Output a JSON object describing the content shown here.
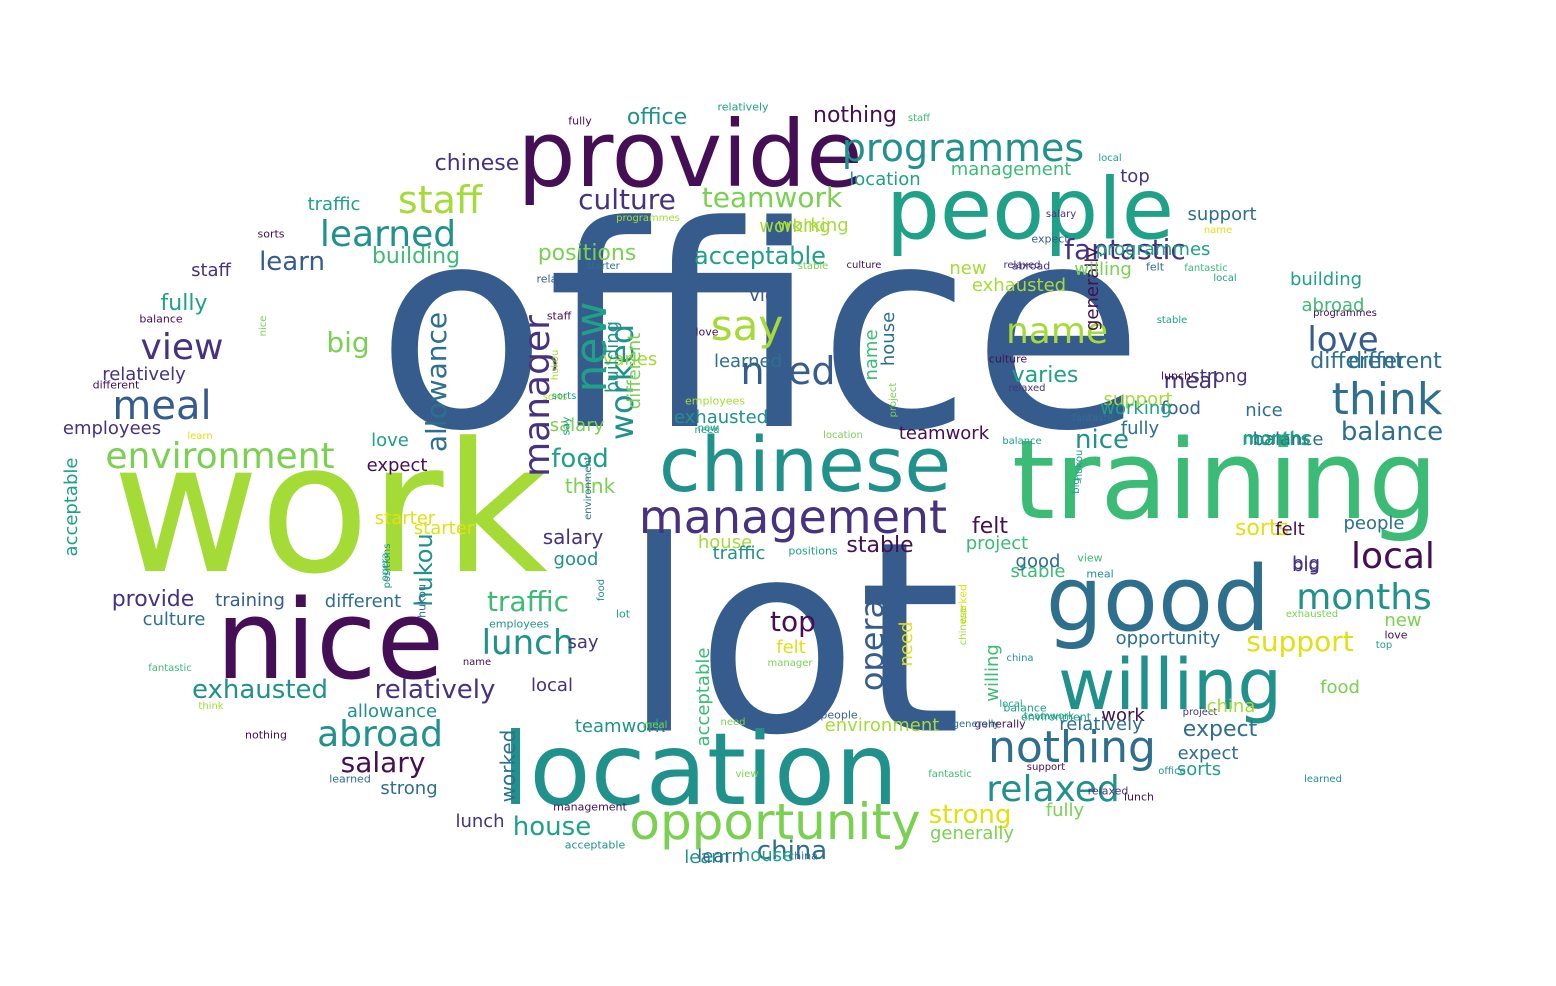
{
  "palette": {
    "deep_purple": "#440f54",
    "indigo": "#46327e",
    "blue": "#365c8d",
    "steel": "#2e6f8e",
    "teal": "#21918c",
    "green_teal": "#1fa187",
    "green": "#3bbb75",
    "lime": "#7ad151",
    "yellow_green": "#a5db36",
    "yellow": "#e0e014"
  },
  "words": [
    {
      "text": "office"
    },
    {
      "text": "lot"
    },
    {
      "text": "work"
    },
    {
      "text": "training"
    },
    {
      "text": "nice"
    },
    {
      "text": "location"
    },
    {
      "text": "provide"
    },
    {
      "text": "people"
    },
    {
      "text": "good"
    },
    {
      "text": "chinese"
    },
    {
      "text": "willing"
    },
    {
      "text": "opportunity"
    },
    {
      "text": "management"
    },
    {
      "text": "nothing"
    },
    {
      "text": "programmes"
    },
    {
      "text": "staff"
    },
    {
      "text": "learned"
    },
    {
      "text": "culture"
    },
    {
      "text": "teamwork"
    },
    {
      "text": "environment"
    },
    {
      "text": "meal"
    },
    {
      "text": "view"
    },
    {
      "text": "say"
    },
    {
      "text": "need"
    },
    {
      "text": "think"
    },
    {
      "text": "love"
    },
    {
      "text": "balance"
    },
    {
      "text": "local"
    },
    {
      "text": "months"
    },
    {
      "text": "support"
    },
    {
      "text": "relaxed"
    },
    {
      "text": "abroad"
    },
    {
      "text": "salary"
    },
    {
      "text": "exhausted"
    },
    {
      "text": "relatively"
    },
    {
      "text": "lunch"
    },
    {
      "text": "traffic"
    },
    {
      "text": "house"
    },
    {
      "text": "china"
    },
    {
      "text": "strong"
    },
    {
      "text": "name"
    },
    {
      "text": "fantastic"
    },
    {
      "text": "acceptable"
    },
    {
      "text": "positions"
    },
    {
      "text": "building"
    },
    {
      "text": "big"
    },
    {
      "text": "learn"
    },
    {
      "text": "food"
    },
    {
      "text": "top"
    },
    {
      "text": "stable"
    },
    {
      "text": "felt"
    },
    {
      "text": "generally"
    },
    {
      "text": "fully"
    },
    {
      "text": "expect"
    },
    {
      "text": "varies"
    },
    {
      "text": "sorts"
    },
    {
      "text": "different"
    },
    {
      "text": "employees"
    },
    {
      "text": "starter"
    },
    {
      "text": "project"
    },
    {
      "text": "opera"
    },
    {
      "text": "manager"
    },
    {
      "text": "new"
    },
    {
      "text": "worked"
    },
    {
      "text": "allowance"
    },
    {
      "text": "hukou"
    },
    {
      "text": "working"
    },
    {
      "text": "relatively"
    },
    {
      "text": "employees"
    },
    {
      "text": "acceptable"
    },
    {
      "text": "different"
    },
    {
      "text": "balance"
    },
    {
      "text": "staff"
    },
    {
      "text": "sorts"
    },
    {
      "text": "traffic"
    },
    {
      "text": "chinese"
    },
    {
      "text": "office"
    },
    {
      "text": "nothing"
    },
    {
      "text": "fully"
    },
    {
      "text": "relatively"
    },
    {
      "text": "worked"
    },
    {
      "text": "staff"
    },
    {
      "text": "location"
    },
    {
      "text": "management"
    },
    {
      "text": "top"
    },
    {
      "text": "local"
    },
    {
      "text": "support"
    },
    {
      "text": "building"
    },
    {
      "text": "abroad"
    },
    {
      "text": "programmes"
    },
    {
      "text": "stable"
    },
    {
      "text": "culture"
    },
    {
      "text": "relaxed"
    },
    {
      "text": "different"
    },
    {
      "text": "meal"
    },
    {
      "text": "nice"
    },
    {
      "text": "months"
    },
    {
      "text": "people"
    },
    {
      "text": "big"
    },
    {
      "text": "new"
    },
    {
      "text": "love"
    },
    {
      "text": "top"
    },
    {
      "text": "food"
    },
    {
      "text": "project"
    },
    {
      "text": "lunch"
    },
    {
      "text": "support"
    },
    {
      "text": "china"
    },
    {
      "text": "teamwork"
    },
    {
      "text": "generally"
    },
    {
      "text": "name"
    },
    {
      "text": "learn"
    },
    {
      "text": "fantastic"
    },
    {
      "text": "exhausted"
    },
    {
      "text": "expect"
    },
    {
      "text": "learned"
    },
    {
      "text": "sorts"
    },
    {
      "text": "fully"
    },
    {
      "text": "work"
    },
    {
      "text": "nice"
    },
    {
      "text": "balance"
    },
    {
      "text": "months"
    },
    {
      "text": "felt"
    },
    {
      "text": "stable"
    },
    {
      "text": "good"
    },
    {
      "text": "big"
    },
    {
      "text": "house"
    },
    {
      "text": "traffic"
    },
    {
      "text": "positions"
    },
    {
      "text": "working"
    },
    {
      "text": "opportunity"
    },
    {
      "text": "willing"
    },
    {
      "text": "teamwork"
    },
    {
      "text": "meal"
    },
    {
      "text": "environment"
    },
    {
      "text": "generally"
    },
    {
      "text": "view"
    },
    {
      "text": "local"
    },
    {
      "text": "allowance"
    },
    {
      "text": "lot"
    },
    {
      "text": "salary"
    },
    {
      "text": "say"
    },
    {
      "text": "provide"
    },
    {
      "text": "training"
    },
    {
      "text": "different"
    },
    {
      "text": "culture"
    },
    {
      "text": "strong"
    },
    {
      "text": "nothing"
    },
    {
      "text": "learned"
    },
    {
      "text": "lunch"
    },
    {
      "text": "house"
    },
    {
      "text": "acceptable"
    },
    {
      "text": "learn"
    },
    {
      "text": "china"
    },
    {
      "text": "management"
    },
    {
      "text": "employees"
    },
    {
      "text": "opera"
    },
    {
      "text": "hukou"
    },
    {
      "text": "starter"
    },
    {
      "text": "think"
    },
    {
      "text": "salary"
    },
    {
      "text": "good"
    },
    {
      "text": "love"
    },
    {
      "text": "expect"
    },
    {
      "text": "felt"
    },
    {
      "text": "manager"
    },
    {
      "text": "exhausted"
    },
    {
      "text": "relaxed"
    },
    {
      "text": "local"
    },
    {
      "text": "say"
    },
    {
      "text": "big"
    },
    {
      "text": "china"
    },
    {
      "text": "relatively"
    },
    {
      "text": "office"
    },
    {
      "text": "balance"
    },
    {
      "text": "environment"
    },
    {
      "text": "generally"
    },
    {
      "text": "teamwork"
    },
    {
      "text": "project"
    },
    {
      "text": "house"
    },
    {
      "text": "support"
    },
    {
      "text": "lunch"
    },
    {
      "text": "food"
    },
    {
      "text": "fully"
    },
    {
      "text": "working"
    },
    {
      "text": "employees"
    },
    {
      "text": "view"
    },
    {
      "text": "meal"
    },
    {
      "text": "nothing"
    },
    {
      "text": "learned"
    },
    {
      "text": "strong"
    },
    {
      "text": "varies"
    },
    {
      "text": "sorts"
    },
    {
      "text": "allowance"
    },
    {
      "text": "hukou"
    },
    {
      "text": "fantastic"
    },
    {
      "text": "worked"
    },
    {
      "text": "need"
    },
    {
      "text": "positions"
    },
    {
      "text": "opera"
    },
    {
      "text": "name"
    },
    {
      "text": "exhausted"
    },
    {
      "text": "new"
    },
    {
      "text": "programmes"
    },
    {
      "text": "willing"
    },
    {
      "text": "expect"
    },
    {
      "text": "building"
    },
    {
      "text": "different"
    },
    {
      "text": "acceptable"
    },
    {
      "text": "stable"
    },
    {
      "text": "chinese"
    },
    {
      "text": "think"
    },
    {
      "text": "abroad"
    },
    {
      "text": "salary"
    },
    {
      "text": "manager"
    },
    {
      "text": "opportunity"
    },
    {
      "text": "location"
    },
    {
      "text": "people"
    },
    {
      "text": "provide"
    },
    {
      "text": "balance"
    },
    {
      "text": "big"
    },
    {
      "text": "relaxed"
    },
    {
      "text": "felt"
    },
    {
      "text": "varies"
    },
    {
      "text": "traffic"
    },
    {
      "text": "say"
    },
    {
      "text": "love"
    },
    {
      "text": "top"
    },
    {
      "text": "new"
    },
    {
      "text": "culture"
    },
    {
      "text": "environment"
    },
    {
      "text": "food"
    },
    {
      "text": "positions"
    },
    {
      "text": "nice"
    },
    {
      "text": "learn"
    },
    {
      "text": "think"
    },
    {
      "text": "fantastic"
    },
    {
      "text": "building"
    },
    {
      "text": "name"
    },
    {
      "text": "relatively"
    },
    {
      "text": "learned"
    },
    {
      "text": "need"
    },
    {
      "text": "sorts"
    },
    {
      "text": "hukou"
    },
    {
      "text": "staff"
    },
    {
      "text": "starter"
    },
    {
      "text": "abroad"
    },
    {
      "text": "programmes"
    },
    {
      "text": "stable"
    },
    {
      "text": "culture"
    },
    {
      "text": "relaxed"
    },
    {
      "text": "chinese"
    },
    {
      "text": "meal"
    },
    {
      "text": "months"
    },
    {
      "text": "nice"
    },
    {
      "text": "fantastic"
    },
    {
      "text": "need"
    },
    {
      "text": "view"
    },
    {
      "text": "abroad"
    },
    {
      "text": "name"
    },
    {
      "text": "think"
    },
    {
      "text": "opera"
    },
    {
      "text": "opportunity"
    },
    {
      "text": "local"
    },
    {
      "text": "people"
    },
    {
      "text": "worked"
    },
    {
      "text": "manager"
    },
    {
      "text": "expect"
    },
    {
      "text": "salary"
    },
    {
      "text": "positions"
    },
    {
      "text": "new"
    },
    {
      "text": "say"
    },
    {
      "text": "food"
    },
    {
      "text": "project"
    },
    {
      "text": "learn"
    },
    {
      "text": "starter"
    },
    {
      "text": "felt"
    },
    {
      "text": "generally"
    },
    {
      "text": "teamwork"
    },
    {
      "text": "fully"
    },
    {
      "text": "exhausted"
    },
    {
      "text": "hukou"
    },
    {
      "text": "balance"
    },
    {
      "text": "traffic"
    },
    {
      "text": "working"
    },
    {
      "text": "employees"
    },
    {
      "text": "view"
    },
    {
      "text": "training"
    },
    {
      "text": "programmes"
    },
    {
      "text": "willing"
    },
    {
      "text": "house"
    },
    {
      "text": "management"
    },
    {
      "text": "environment"
    },
    {
      "text": "lunch"
    },
    {
      "text": "china"
    },
    {
      "text": "acceptable"
    },
    {
      "text": "learned"
    },
    {
      "text": "nothing"
    },
    {
      "text": "different"
    },
    {
      "text": "allowance"
    },
    {
      "text": "relatively"
    },
    {
      "text": "strong"
    },
    {
      "text": "building"
    },
    {
      "text": "varies"
    },
    {
      "text": "sorts"
    },
    {
      "text": "support"
    },
    {
      "text": "top"
    },
    {
      "text": "love"
    },
    {
      "text": "project"
    },
    {
      "text": "fully"
    },
    {
      "text": "stable"
    },
    {
      "text": "starter"
    },
    {
      "text": "office"
    },
    {
      "text": "worked"
    },
    {
      "text": "need"
    },
    {
      "text": "working"
    },
    {
      "text": "relatively"
    },
    {
      "text": "fantastic"
    },
    {
      "text": "salary"
    },
    {
      "text": "name"
    },
    {
      "text": "months"
    },
    {
      "text": "people"
    },
    {
      "text": "big"
    },
    {
      "text": "generally"
    },
    {
      "text": "exhausted"
    },
    {
      "text": "lot"
    },
    {
      "text": "say"
    },
    {
      "text": "hukou"
    },
    {
      "text": "allowance"
    },
    {
      "text": "manager"
    },
    {
      "text": "new"
    },
    {
      "text": "abroad"
    },
    {
      "text": "balance"
    },
    {
      "text": "local"
    },
    {
      "text": "different"
    },
    {
      "text": "acceptable"
    },
    {
      "text": "fully"
    },
    {
      "text": "staff"
    },
    {
      "text": "relaxed"
    },
    {
      "text": "culture"
    },
    {
      "text": "china"
    },
    {
      "text": "chinese"
    },
    {
      "text": "stable"
    },
    {
      "text": "love"
    },
    {
      "text": "project"
    },
    {
      "text": "name"
    },
    {
      "text": "food"
    },
    {
      "text": "teamwork"
    },
    {
      "text": "working"
    },
    {
      "text": "lunch"
    },
    {
      "text": "learned"
    },
    {
      "text": "nothing"
    },
    {
      "text": "management"
    },
    {
      "text": "support"
    },
    {
      "text": "view"
    },
    {
      "text": "house"
    },
    {
      "text": "opera"
    },
    {
      "text": "strong"
    },
    {
      "text": "sorts"
    },
    {
      "text": "felt"
    },
    {
      "text": "varies"
    },
    {
      "text": "expect"
    },
    {
      "text": "different"
    },
    {
      "text": "meal"
    },
    {
      "text": "employees"
    }
  ]
}
